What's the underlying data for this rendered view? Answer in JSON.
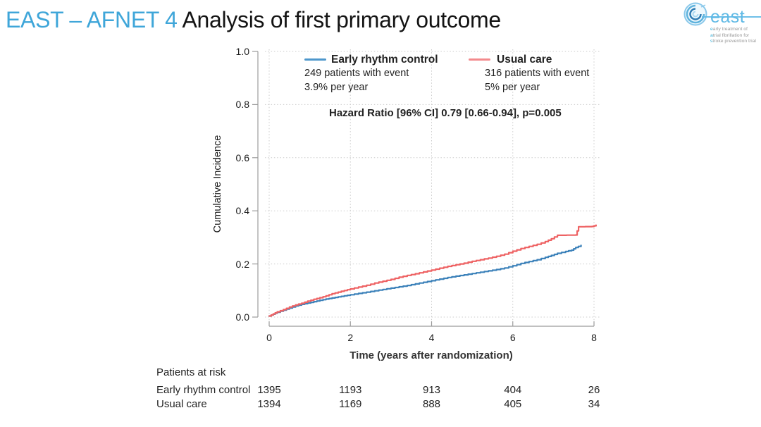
{
  "slide": {
    "title_highlight": "EAST – AFNET 4",
    "title_rest": " Analysis of first primary outcome"
  },
  "logo": {
    "name": "east",
    "tagline": [
      {
        "lead": "e",
        "rest": "arly treatment of"
      },
      {
        "lead": "a",
        "rest": "trial fibrillation for"
      },
      {
        "lead": "s",
        "rest": "troke prevention trial"
      }
    ]
  },
  "chart_data": {
    "type": "line",
    "subtype": "cumulative-incidence-step-curves",
    "xlabel": "Time (years after randomization)",
    "ylabel": "Cumulative Incidence",
    "xlim": [
      0,
      8
    ],
    "ylim": [
      0,
      1
    ],
    "xticks": [
      0,
      2,
      4,
      6,
      8
    ],
    "yticks": [
      "0.0",
      "0.2",
      "0.4",
      "0.6",
      "0.8",
      "1.0"
    ],
    "grid": "dotted",
    "legend_position": "top-inside",
    "annotation": "Hazard Ratio [96% CI] 0.79 [0.66-0.94], p=0.005",
    "colors": {
      "grid": "#cbcbcb",
      "axis": "#9b9b9b"
    },
    "series": [
      {
        "name": "Early rhythm control",
        "color": "#3d82ba",
        "swatch_color": "#4e97cc",
        "events_label": "249 patients with event",
        "rate_label": "3.9% per year",
        "points": [
          [
            0,
            0.004
          ],
          [
            0.1,
            0.011
          ],
          [
            0.2,
            0.018
          ],
          [
            0.35,
            0.026
          ],
          [
            0.5,
            0.034
          ],
          [
            0.65,
            0.042
          ],
          [
            0.8,
            0.048
          ],
          [
            0.95,
            0.053
          ],
          [
            1.1,
            0.058
          ],
          [
            1.25,
            0.063
          ],
          [
            1.4,
            0.068
          ],
          [
            1.55,
            0.072
          ],
          [
            1.7,
            0.076
          ],
          [
            1.85,
            0.08
          ],
          [
            2.0,
            0.084
          ],
          [
            2.2,
            0.089
          ],
          [
            2.4,
            0.094
          ],
          [
            2.6,
            0.099
          ],
          [
            2.8,
            0.104
          ],
          [
            3.0,
            0.109
          ],
          [
            3.2,
            0.114
          ],
          [
            3.4,
            0.119
          ],
          [
            3.6,
            0.125
          ],
          [
            3.8,
            0.131
          ],
          [
            4.0,
            0.137
          ],
          [
            4.2,
            0.143
          ],
          [
            4.4,
            0.149
          ],
          [
            4.6,
            0.154
          ],
          [
            4.8,
            0.159
          ],
          [
            5.0,
            0.164
          ],
          [
            5.2,
            0.169
          ],
          [
            5.4,
            0.174
          ],
          [
            5.6,
            0.179
          ],
          [
            5.8,
            0.185
          ],
          [
            6.0,
            0.193
          ],
          [
            6.2,
            0.202
          ],
          [
            6.4,
            0.209
          ],
          [
            6.6,
            0.216
          ],
          [
            6.8,
            0.225
          ],
          [
            6.95,
            0.232
          ],
          [
            7.1,
            0.24
          ],
          [
            7.3,
            0.247
          ],
          [
            7.45,
            0.252
          ],
          [
            7.55,
            0.262
          ],
          [
            7.68,
            0.27
          ]
        ]
      },
      {
        "name": "Usual care",
        "color": "#ee6263",
        "swatch_color": "#f38a8d",
        "events_label": "316 patients with event",
        "rate_label": "5% per year",
        "points": [
          [
            0,
            0.004
          ],
          [
            0.1,
            0.012
          ],
          [
            0.2,
            0.02
          ],
          [
            0.35,
            0.028
          ],
          [
            0.5,
            0.038
          ],
          [
            0.65,
            0.046
          ],
          [
            0.8,
            0.052
          ],
          [
            0.95,
            0.06
          ],
          [
            1.1,
            0.067
          ],
          [
            1.25,
            0.073
          ],
          [
            1.4,
            0.08
          ],
          [
            1.55,
            0.088
          ],
          [
            1.7,
            0.094
          ],
          [
            1.85,
            0.1
          ],
          [
            2.0,
            0.106
          ],
          [
            2.2,
            0.113
          ],
          [
            2.4,
            0.12
          ],
          [
            2.6,
            0.128
          ],
          [
            2.8,
            0.135
          ],
          [
            3.0,
            0.142
          ],
          [
            3.2,
            0.15
          ],
          [
            3.4,
            0.157
          ],
          [
            3.6,
            0.163
          ],
          [
            3.8,
            0.17
          ],
          [
            4.0,
            0.177
          ],
          [
            4.2,
            0.184
          ],
          [
            4.4,
            0.191
          ],
          [
            4.6,
            0.197
          ],
          [
            4.8,
            0.203
          ],
          [
            5.0,
            0.21
          ],
          [
            5.2,
            0.216
          ],
          [
            5.4,
            0.222
          ],
          [
            5.6,
            0.229
          ],
          [
            5.8,
            0.237
          ],
          [
            6.0,
            0.248
          ],
          [
            6.2,
            0.258
          ],
          [
            6.4,
            0.266
          ],
          [
            6.6,
            0.274
          ],
          [
            6.8,
            0.284
          ],
          [
            6.95,
            0.295
          ],
          [
            7.1,
            0.308
          ],
          [
            7.55,
            0.309
          ],
          [
            7.62,
            0.34
          ],
          [
            7.95,
            0.341
          ],
          [
            8.05,
            0.346
          ]
        ]
      }
    ]
  },
  "risk_table": {
    "title": "Patients at risk",
    "time_points": [
      0,
      2,
      4,
      6,
      8
    ],
    "rows": [
      {
        "label": "Early rhythm control",
        "values": [
          "1395",
          "1193",
          "913",
          "404",
          "26"
        ]
      },
      {
        "label": "Usual care",
        "values": [
          "1394",
          "1169",
          "888",
          "405",
          "34"
        ]
      }
    ]
  }
}
